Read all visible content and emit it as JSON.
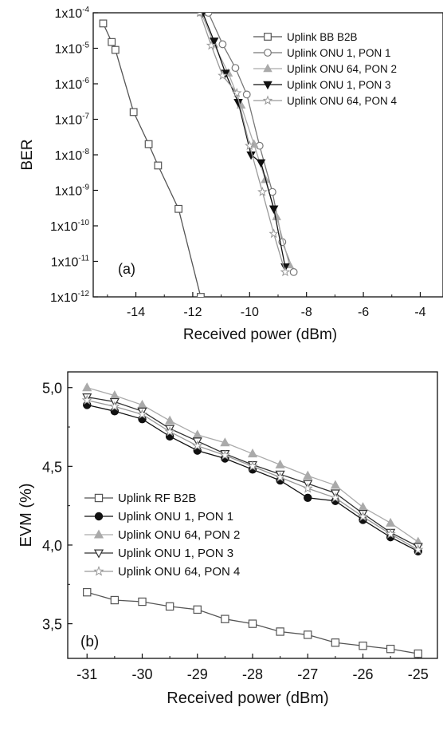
{
  "chart_data": [
    {
      "type": "line",
      "panel_label": "(a)",
      "xlabel": "Received power (dBm)",
      "ylabel": "BER",
      "y_scale": "log",
      "xlim": [
        -15.5,
        -3.2
      ],
      "ylim": [
        1e-12,
        0.0001
      ],
      "x_ticks": [
        -14,
        -12,
        -10,
        -8,
        -6,
        -4
      ],
      "x_tick_labels": [
        "-14",
        "-12",
        "-10",
        "-8",
        "-6",
        "-4"
      ],
      "y_ticks": [
        0.0001,
        1e-05,
        1e-06,
        1e-07,
        1e-08,
        1e-09,
        1e-10,
        1e-11,
        1e-12
      ],
      "y_tick_labels": [
        {
          "base": "1x10",
          "exp": "-4"
        },
        {
          "base": "1x10",
          "exp": "-5"
        },
        {
          "base": "1x10",
          "exp": "-6"
        },
        {
          "base": "1x10",
          "exp": "-7"
        },
        {
          "base": "1x10",
          "exp": "-8"
        },
        {
          "base": "1x10",
          "exp": "-9"
        },
        {
          "base": "1x10",
          "exp": "-10"
        },
        {
          "base": "1x10",
          "exp": "-11"
        },
        {
          "base": "1x10",
          "exp": "-12"
        }
      ],
      "grid": false,
      "legend_position": "top-right",
      "series": [
        {
          "name": "Uplink BB B2B",
          "marker": "square-open",
          "color": "#555555",
          "x": [
            -15.15,
            -14.85,
            -14.72,
            -14.08,
            -13.55,
            -13.22,
            -12.5,
            -11.72
          ],
          "y": [
            5e-05,
            1.5e-05,
            9e-06,
            1.6e-07,
            2e-08,
            5e-09,
            3e-10,
            1e-12
          ]
        },
        {
          "name": "Uplink ONU 1, PON 1",
          "marker": "circle-open",
          "color": "#777777",
          "x": [
            -11.45,
            -10.95,
            -10.5,
            -10.1,
            -9.65,
            -9.2,
            -8.85,
            -8.45
          ],
          "y": [
            0.0001,
            1.3e-05,
            2.8e-06,
            5e-07,
            1.8e-08,
            9e-10,
            3.5e-11,
            5e-12
          ]
        },
        {
          "name": "Uplink ONU 64, PON 2",
          "marker": "triangle-up-filled",
          "color": "#aaaaaa",
          "x": [
            -11.7,
            -11.25,
            -10.75,
            -10.3,
            -9.85,
            -9.45,
            -9.05,
            -8.6
          ],
          "y": [
            0.0001,
            1.3e-05,
            2e-06,
            2.5e-07,
            2e-08,
            2e-09,
            1.8e-10,
            8e-12
          ]
        },
        {
          "name": "Uplink ONU 1, PON 3",
          "marker": "triangle-down-filled",
          "color": "#111111",
          "x": [
            -11.65,
            -11.25,
            -10.85,
            -10.4,
            -9.95,
            -9.6,
            -9.15,
            -8.75
          ],
          "y": [
            0.0001,
            1.6e-05,
            2e-06,
            3e-07,
            1e-08,
            6e-09,
            3e-10,
            7e-12
          ]
        },
        {
          "name": "Uplink ONU 64, PON 4",
          "marker": "star-open",
          "color": "#999999",
          "x": [
            -11.75,
            -11.35,
            -10.95,
            -10.45,
            -10.0,
            -9.55,
            -9.15,
            -8.75
          ],
          "y": [
            0.0001,
            1.2e-05,
            1.7e-06,
            5.5e-07,
            1.8e-08,
            9e-10,
            6e-11,
            5e-12
          ]
        }
      ]
    },
    {
      "type": "line",
      "panel_label": "(b)",
      "xlabel": "Received power (dBm)",
      "ylabel": "EVM (%)",
      "xlim": [
        -31.35,
        -24.65
      ],
      "ylim": [
        3.28,
        5.1
      ],
      "x_ticks": [
        -31,
        -30,
        -29,
        -28,
        -27,
        -26,
        -25
      ],
      "x_tick_labels": [
        "-31",
        "-30",
        "-29",
        "-28",
        "-27",
        "-26",
        "-25"
      ],
      "y_ticks": [
        3.5,
        4.0,
        4.5,
        5.0
      ],
      "y_tick_labels": [
        "3,5",
        "4,0",
        "4,5",
        "5,0"
      ],
      "grid": false,
      "legend_position": "middle-left",
      "x": [
        -31,
        -30.5,
        -30,
        -29.5,
        -29,
        -28.5,
        -28,
        -27.5,
        -27,
        -26.5,
        -26,
        -25.5,
        -25
      ],
      "series": [
        {
          "name": "Uplink RF B2B",
          "marker": "square-open",
          "color": "#555555",
          "values": [
            3.7,
            3.65,
            3.64,
            3.61,
            3.59,
            3.53,
            3.5,
            3.45,
            3.43,
            3.38,
            3.36,
            3.34,
            3.31
          ]
        },
        {
          "name": "Uplink ONU 1, PON 1",
          "marker": "circle-filled",
          "color": "#111111",
          "values": [
            4.89,
            4.85,
            4.8,
            4.69,
            4.6,
            4.55,
            4.48,
            4.41,
            4.3,
            4.28,
            4.16,
            4.05,
            3.96
          ]
        },
        {
          "name": "Uplink ONU 64, PON 2",
          "marker": "triangle-up-filled",
          "color": "#aaaaaa",
          "values": [
            5.0,
            4.95,
            4.89,
            4.79,
            4.7,
            4.65,
            4.58,
            4.51,
            4.44,
            4.38,
            4.24,
            4.14,
            4.02
          ]
        },
        {
          "name": "Uplink ONU 1, PON 3",
          "marker": "triangle-down-open",
          "color": "#333333",
          "values": [
            4.94,
            4.91,
            4.85,
            4.74,
            4.66,
            4.58,
            4.51,
            4.45,
            4.39,
            4.33,
            4.2,
            4.08,
            3.99
          ]
        },
        {
          "name": "Uplink ONU 64, PON 4",
          "marker": "star-open",
          "color": "#999999",
          "values": [
            4.92,
            4.88,
            4.83,
            4.72,
            4.63,
            4.57,
            4.5,
            4.43,
            4.36,
            4.3,
            4.18,
            4.07,
            3.97
          ]
        }
      ]
    }
  ]
}
